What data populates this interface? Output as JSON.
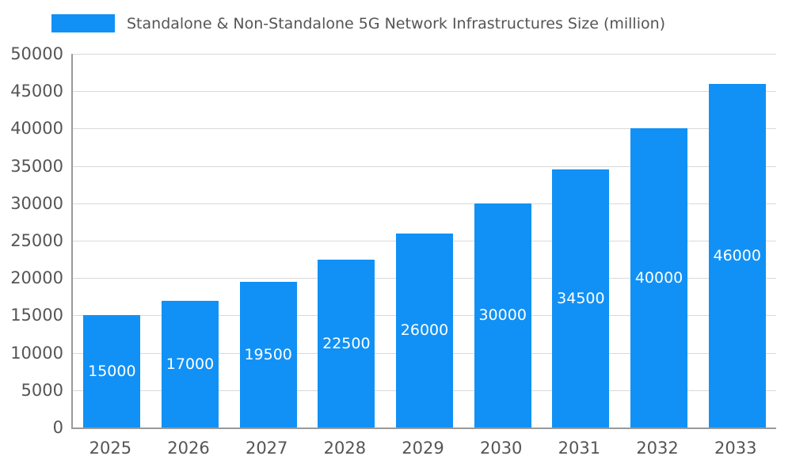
{
  "chart_data": {
    "type": "bar",
    "title": "Standalone & Non-Standalone 5G Network Infrastructures Size (million)",
    "categories": [
      "2025",
      "2026",
      "2027",
      "2028",
      "2029",
      "2030",
      "2031",
      "2032",
      "2033"
    ],
    "values": [
      15000,
      17000,
      19500,
      22500,
      26000,
      30000,
      34500,
      40000,
      46000
    ],
    "xlabel": "",
    "ylabel": "",
    "ylim": [
      0,
      50000
    ],
    "ytick_step": 5000,
    "grid": true,
    "legend_position": "top-left",
    "bar_color": "#1191f5",
    "bar_label_color": "#ffffff",
    "axis_text_color": "#555555",
    "grid_color": "#d9d9d9",
    "axis_line_color": "#9a9a9a"
  }
}
